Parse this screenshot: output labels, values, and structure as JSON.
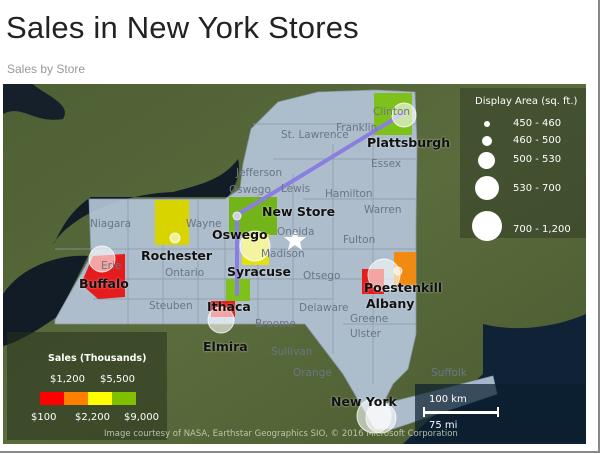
{
  "title": "Sales in New York Stores",
  "subtitle": "Sales by Store",
  "colors": {
    "red": "#e51c1c",
    "orange": "#f08a10",
    "yellow": "#e8e600",
    "green": "#7dc11a",
    "route": "#8a7ee0",
    "state": "#b4c4d8"
  },
  "stores": [
    {
      "name": "Plattsburgh",
      "color": "green",
      "size": "530 - 700"
    },
    {
      "name": "Oswego",
      "color": "green",
      "size": "450 - 460"
    },
    {
      "name": "New Store",
      "marker": "star-icon"
    },
    {
      "name": "Rochester",
      "color": "yellow",
      "size": "460 - 500"
    },
    {
      "name": "Syracuse",
      "color": "yellow",
      "size": "700 - 1,200"
    },
    {
      "name": "Buffalo",
      "color": "red",
      "size": "530 - 700"
    },
    {
      "name": "Ithaca",
      "color": "green",
      "size": "450 - 460"
    },
    {
      "name": "Elmira",
      "color": "red",
      "size": "530 - 700"
    },
    {
      "name": "Poestenkill",
      "color": "orange",
      "size": "450 - 460"
    },
    {
      "name": "Albany",
      "color": "red",
      "size": "700 - 1,200"
    },
    {
      "name": "New York",
      "color": "none",
      "size": "700 - 1,200"
    }
  ],
  "counties": [
    "Clinton",
    "Franklin",
    "St. Lawrence",
    "Essex",
    "Jefferson",
    "Lewis",
    "Hamilton",
    "Warren",
    "Niagara",
    "Wayne",
    "Oswego",
    "Oneida",
    "Fulton",
    "Madison",
    "Erie",
    "Ontario",
    "Otsego",
    "Steuben",
    "Broome",
    "Delaware",
    "Greene",
    "Ulster",
    "Sullivan",
    "Orange",
    "Suffolk"
  ],
  "size_legend": {
    "title": "Display Area (sq. ft.)",
    "items": [
      "450 - 460",
      "460 - 500",
      "500 - 530",
      "530 - 700",
      "700 - 1,200"
    ]
  },
  "color_legend": {
    "title": "Sales (Thousands)",
    "top_labels": [
      "$1,200",
      "$5,500"
    ],
    "bottom_labels": [
      "$100",
      "$2,200",
      "$9,000"
    ]
  },
  "scale_bar": {
    "km": "100 km",
    "mi": "75 mi"
  },
  "credit": "Image courtesy of NASA, Earthstar Geographics  SIO, © 2016 Microsoft Corporation"
}
